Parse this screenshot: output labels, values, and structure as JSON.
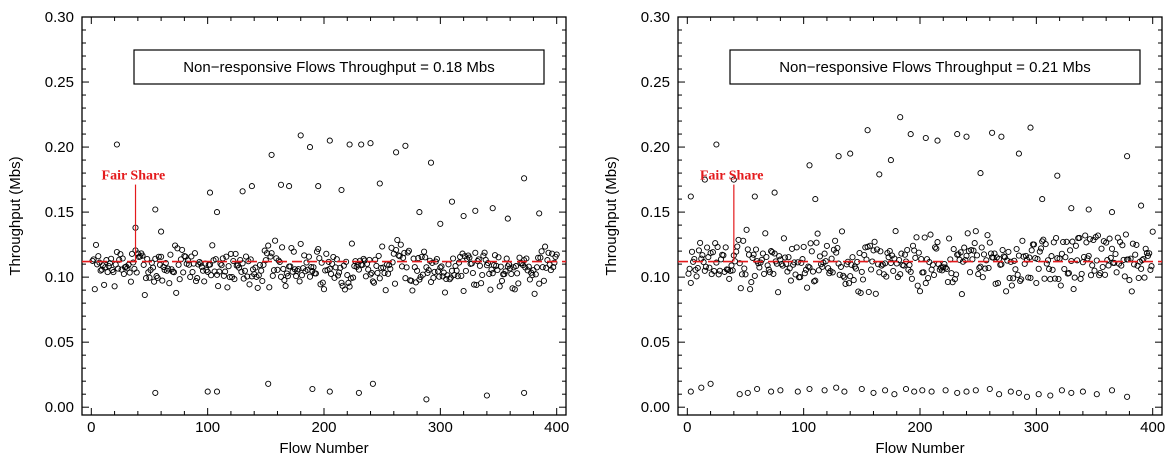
{
  "chart_data": [
    {
      "type": "scatter",
      "xlabel": "Flow Number",
      "ylabel": "Throughput (Mbs)",
      "xlim": [
        -8,
        408
      ],
      "ylim": [
        -0.006,
        0.3
      ],
      "xticks": [
        0,
        100,
        200,
        300,
        400
      ],
      "xtick_labels": [
        "0",
        "100",
        "200",
        "300",
        "400"
      ],
      "yticks": [
        0.0,
        0.05,
        0.1,
        0.15,
        0.2,
        0.25,
        0.3
      ],
      "ytick_labels": [
        "0.00",
        "0.05",
        "0.10",
        "0.15",
        "0.20",
        "0.25",
        "0.30"
      ],
      "annotation_box": "Non−responsive Flows Throughput =  0.18 Mbs",
      "fair_share": {
        "label": "Fair Share",
        "y": 0.112,
        "label_flow": 38,
        "label_y": 0.175,
        "color": "#e41a1c"
      },
      "point_sets": {
        "background": {
          "count": 400,
          "center": 0.108,
          "spread": 0.017,
          "seed": 7
        },
        "outliers_x": [
          22,
          38,
          55,
          60,
          102,
          108,
          130,
          138,
          155,
          163,
          170,
          180,
          188,
          195,
          205,
          215,
          222,
          232,
          240,
          248,
          262,
          270,
          282,
          292,
          300,
          310,
          320,
          330,
          345,
          358,
          372,
          385
        ],
        "outliers_y": [
          0.202,
          0.138,
          0.152,
          0.135,
          0.165,
          0.15,
          0.166,
          0.17,
          0.194,
          0.171,
          0.17,
          0.209,
          0.2,
          0.17,
          0.205,
          0.167,
          0.202,
          0.202,
          0.203,
          0.172,
          0.196,
          0.201,
          0.15,
          0.188,
          0.141,
          0.158,
          0.147,
          0.151,
          0.153,
          0.145,
          0.176,
          0.149
        ],
        "low_x": [
          55,
          100,
          108,
          152,
          190,
          205,
          230,
          242,
          288,
          340,
          372
        ],
        "low_y": [
          0.011,
          0.012,
          0.012,
          0.018,
          0.014,
          0.012,
          0.011,
          0.018,
          0.006,
          0.009,
          0.011
        ]
      }
    },
    {
      "type": "scatter",
      "xlabel": "Flow Number",
      "ylabel": "Throughput (Mbs)",
      "xlim": [
        -8,
        408
      ],
      "ylim": [
        -0.006,
        0.3
      ],
      "xticks": [
        0,
        100,
        200,
        300,
        400
      ],
      "xtick_labels": [
        "0",
        "100",
        "200",
        "300",
        "400"
      ],
      "yticks": [
        0.0,
        0.05,
        0.1,
        0.15,
        0.2,
        0.25,
        0.3
      ],
      "ytick_labels": [
        "0.00",
        "0.05",
        "0.10",
        "0.15",
        "0.20",
        "0.25",
        "0.30"
      ],
      "annotation_box": "Non−responsive Flows Throughput =  0.21 Mbs",
      "fair_share": {
        "label": "Fair Share",
        "y": 0.112,
        "label_flow": 40,
        "label_y": 0.175,
        "color": "#e41a1c"
      },
      "point_sets": {
        "background": {
          "count": 400,
          "center": 0.112,
          "spread": 0.022,
          "seed": 19
        },
        "outliers_x": [
          3,
          15,
          25,
          40,
          58,
          75,
          105,
          110,
          130,
          140,
          155,
          165,
          175,
          183,
          192,
          205,
          215,
          232,
          240,
          252,
          262,
          270,
          285,
          295,
          305,
          318,
          330,
          345,
          365,
          378,
          390
        ],
        "outliers_y": [
          0.162,
          0.175,
          0.202,
          0.175,
          0.162,
          0.165,
          0.186,
          0.16,
          0.193,
          0.195,
          0.213,
          0.179,
          0.19,
          0.223,
          0.21,
          0.207,
          0.205,
          0.21,
          0.208,
          0.18,
          0.211,
          0.208,
          0.195,
          0.215,
          0.16,
          0.178,
          0.153,
          0.152,
          0.15,
          0.193,
          0.155
        ],
        "low_x": [
          3,
          12,
          20,
          45,
          52,
          60,
          72,
          80,
          95,
          105,
          118,
          128,
          135,
          150,
          160,
          170,
          178,
          188,
          195,
          202,
          210,
          222,
          232,
          240,
          248,
          260,
          268,
          278,
          285,
          292,
          302,
          312,
          322,
          330,
          340,
          352,
          365,
          378
        ],
        "low_y": [
          0.012,
          0.015,
          0.018,
          0.01,
          0.011,
          0.014,
          0.012,
          0.013,
          0.012,
          0.014,
          0.013,
          0.015,
          0.012,
          0.014,
          0.011,
          0.013,
          0.01,
          0.014,
          0.012,
          0.013,
          0.012,
          0.013,
          0.011,
          0.012,
          0.013,
          0.014,
          0.01,
          0.012,
          0.011,
          0.008,
          0.01,
          0.009,
          0.013,
          0.011,
          0.012,
          0.01,
          0.013,
          0.008
        ]
      }
    }
  ]
}
